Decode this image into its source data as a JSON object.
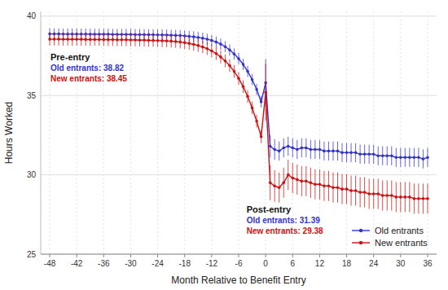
{
  "chart_data": {
    "type": "line",
    "xlabel": "Month Relative to Benefit Entry",
    "ylabel": "Hours Worked",
    "xlim": [
      -50,
      38
    ],
    "ylim": [
      25,
      40.3
    ],
    "xticks": [
      -48,
      -42,
      -36,
      -30,
      -24,
      -18,
      -12,
      -6,
      0,
      6,
      12,
      18,
      24,
      30,
      36
    ],
    "yticks": [
      25,
      30,
      35,
      40
    ],
    "grid": true,
    "legend": "lower right",
    "marker": "circle",
    "line_style": "solid",
    "annotations": [
      [
        "Pre-entry",
        "Old entrants: 38.82",
        "New entrants: 38.45"
      ],
      [
        "Post-entry",
        "Old entrants: 31.39",
        "New entrants: 29.38"
      ]
    ],
    "x": [
      -48,
      -47,
      -46,
      -45,
      -44,
      -43,
      -42,
      -41,
      -40,
      -39,
      -38,
      -37,
      -36,
      -35,
      -34,
      -33,
      -32,
      -31,
      -30,
      -29,
      -28,
      -27,
      -26,
      -25,
      -24,
      -23,
      -22,
      -21,
      -20,
      -19,
      -18,
      -17,
      -16,
      -15,
      -14,
      -13,
      -12,
      -11,
      -10,
      -9,
      -8,
      -7,
      -6,
      -5,
      -4,
      -3,
      -2,
      -1,
      0,
      1,
      2,
      3,
      4,
      5,
      6,
      7,
      8,
      9,
      10,
      11,
      12,
      13,
      14,
      15,
      16,
      17,
      18,
      19,
      20,
      21,
      22,
      23,
      24,
      25,
      26,
      27,
      28,
      29,
      30,
      31,
      32,
      33,
      34,
      35,
      36
    ],
    "series": [
      {
        "name": "Old entrants",
        "color": "#3333CC",
        "values": [
          38.88,
          38.88,
          38.88,
          38.87,
          38.87,
          38.87,
          38.87,
          38.87,
          38.87,
          38.86,
          38.86,
          38.86,
          38.86,
          38.86,
          38.85,
          38.85,
          38.85,
          38.85,
          38.85,
          38.84,
          38.84,
          38.84,
          38.83,
          38.83,
          38.82,
          38.82,
          38.81,
          38.8,
          38.79,
          38.78,
          38.76,
          38.73,
          38.7,
          38.66,
          38.61,
          38.55,
          38.47,
          38.37,
          38.24,
          38.08,
          37.87,
          37.62,
          37.32,
          36.96,
          36.52,
          36.0,
          35.38,
          34.6,
          35.8,
          31.8,
          31.6,
          31.5,
          31.7,
          31.8,
          31.7,
          31.6,
          31.7,
          31.7,
          31.6,
          31.6,
          31.6,
          31.5,
          31.5,
          31.5,
          31.5,
          31.4,
          31.4,
          31.4,
          31.4,
          31.3,
          31.3,
          31.3,
          31.3,
          31.2,
          31.2,
          31.2,
          31.2,
          31.1,
          31.1,
          31.1,
          31.1,
          31.1,
          31.1,
          31.0,
          31.1
        ],
        "errors": [
          0.35,
          0.35,
          0.35,
          0.35,
          0.35,
          0.35,
          0.35,
          0.35,
          0.35,
          0.35,
          0.35,
          0.35,
          0.35,
          0.35,
          0.35,
          0.35,
          0.35,
          0.35,
          0.35,
          0.35,
          0.35,
          0.35,
          0.35,
          0.35,
          0.35,
          0.35,
          0.35,
          0.35,
          0.35,
          0.35,
          0.35,
          0.35,
          0.35,
          0.35,
          0.35,
          0.35,
          0.35,
          0.35,
          0.35,
          0.35,
          0.35,
          0.35,
          0.35,
          0.35,
          0.35,
          0.35,
          0.35,
          0.35,
          1.5,
          0.7,
          0.65,
          0.6,
          0.6,
          0.6,
          0.6,
          0.6,
          0.6,
          0.6,
          0.6,
          0.6,
          0.6,
          0.6,
          0.6,
          0.6,
          0.6,
          0.6,
          0.6,
          0.6,
          0.6,
          0.6,
          0.6,
          0.6,
          0.6,
          0.6,
          0.6,
          0.6,
          0.6,
          0.6,
          0.6,
          0.6,
          0.6,
          0.6,
          0.6,
          0.6,
          0.6
        ]
      },
      {
        "name": "New entrants",
        "color": "#CC1111",
        "values": [
          38.55,
          38.55,
          38.55,
          38.54,
          38.54,
          38.54,
          38.54,
          38.54,
          38.53,
          38.53,
          38.53,
          38.53,
          38.52,
          38.52,
          38.52,
          38.51,
          38.51,
          38.51,
          38.5,
          38.5,
          38.49,
          38.49,
          38.48,
          38.47,
          38.46,
          38.45,
          38.44,
          38.42,
          38.4,
          38.37,
          38.33,
          38.28,
          38.22,
          38.15,
          38.06,
          37.95,
          37.81,
          37.64,
          37.43,
          37.18,
          36.88,
          36.52,
          36.08,
          35.56,
          34.94,
          34.22,
          33.38,
          32.4,
          35.2,
          29.5,
          29.3,
          29.2,
          29.5,
          30.0,
          29.8,
          29.7,
          29.6,
          29.6,
          29.5,
          29.4,
          29.4,
          29.3,
          29.3,
          29.2,
          29.2,
          29.1,
          29.1,
          29.0,
          29.0,
          28.9,
          28.9,
          28.8,
          28.8,
          28.8,
          28.7,
          28.7,
          28.7,
          28.6,
          28.6,
          28.6,
          28.6,
          28.5,
          28.5,
          28.5,
          28.5
        ],
        "errors": [
          0.4,
          0.4,
          0.4,
          0.4,
          0.4,
          0.4,
          0.4,
          0.4,
          0.4,
          0.4,
          0.4,
          0.4,
          0.4,
          0.4,
          0.4,
          0.4,
          0.4,
          0.4,
          0.4,
          0.4,
          0.4,
          0.4,
          0.4,
          0.4,
          0.4,
          0.4,
          0.4,
          0.4,
          0.4,
          0.4,
          0.4,
          0.4,
          0.4,
          0.4,
          0.4,
          0.4,
          0.4,
          0.4,
          0.4,
          0.4,
          0.4,
          0.4,
          0.4,
          0.4,
          0.4,
          0.4,
          0.4,
          0.4,
          1.8,
          1.1,
          1.0,
          0.95,
          0.95,
          0.95,
          0.95,
          0.95,
          0.95,
          0.95,
          0.95,
          0.95,
          0.95,
          0.95,
          0.95,
          0.95,
          0.95,
          0.95,
          0.95,
          0.95,
          0.95,
          0.95,
          0.95,
          0.95,
          0.95,
          0.95,
          0.95,
          0.95,
          0.95,
          0.95,
          0.95,
          0.95,
          0.95,
          0.95,
          0.95,
          0.95,
          0.95
        ]
      }
    ]
  }
}
